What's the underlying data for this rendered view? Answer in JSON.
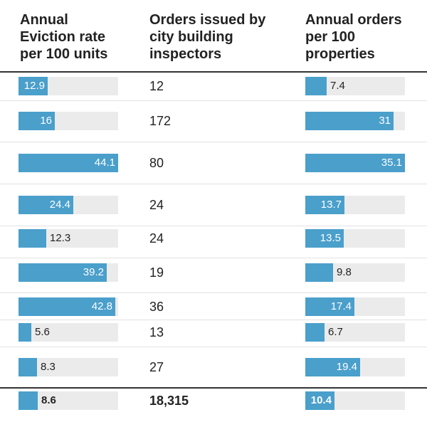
{
  "headers": {
    "eviction": "Annual\nEviction rate\nper 100 units",
    "orders": "Orders issued by\ncity building\ninspectors",
    "per100": "Annual orders\nper 100\nproperties"
  },
  "colors": {
    "bar": "#4a9fcb",
    "track": "#ebebeb"
  },
  "chart_data": {
    "type": "table",
    "columns": [
      "Annual Eviction rate per 100 units",
      "Orders issued by city building inspectors",
      "Annual orders per 100 properties"
    ],
    "eviction_scale_max": 44.1,
    "orders_per100_scale_max": 35.1,
    "rows": [
      {
        "eviction_rate": "12.9",
        "orders": "12",
        "orders_per_100": "7.4"
      },
      {
        "eviction_rate": "16",
        "orders": "172",
        "orders_per_100": "31"
      },
      {
        "eviction_rate": "44.1",
        "orders": "80",
        "orders_per_100": "35.1"
      },
      {
        "eviction_rate": "24.4",
        "orders": "24",
        "orders_per_100": "13.7"
      },
      {
        "eviction_rate": "12.3",
        "orders": "24",
        "orders_per_100": "13.5"
      },
      {
        "eviction_rate": "39.2",
        "orders": "19",
        "orders_per_100": "9.8"
      },
      {
        "eviction_rate": "42.8",
        "orders": "36",
        "orders_per_100": "17.4"
      },
      {
        "eviction_rate": "5.6",
        "orders": "13",
        "orders_per_100": "6.7"
      },
      {
        "eviction_rate": "8.3",
        "orders": "27",
        "orders_per_100": "19.4"
      }
    ],
    "total": {
      "eviction_rate": "8.6",
      "orders": "18,315",
      "orders_per_100": "10.4"
    }
  }
}
